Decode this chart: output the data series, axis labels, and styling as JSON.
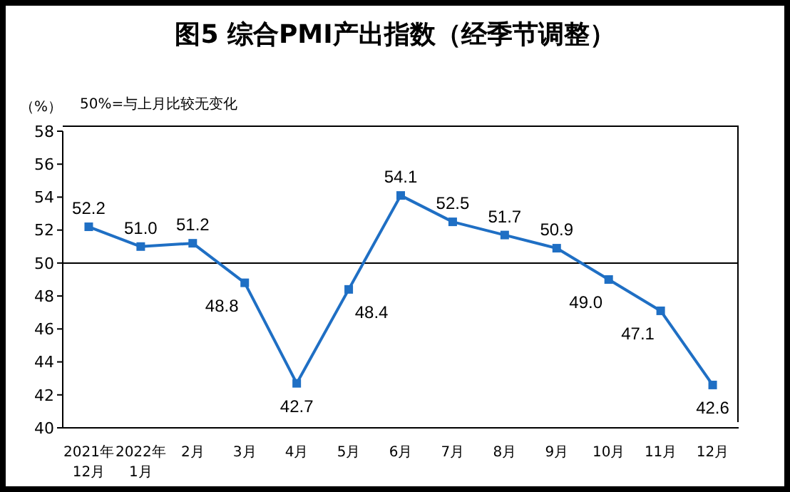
{
  "chart_data": {
    "type": "line",
    "title": "图5 综合PMI产出指数（经季节调整）",
    "ylabel": "（%）",
    "annotations": [
      "50%=与上月比较无变化"
    ],
    "categories": [
      "2021年\n12月",
      "2022年\n1月",
      "2月",
      "3月",
      "4月",
      "5月",
      "6月",
      "7月",
      "8月",
      "9月",
      "10月",
      "11月",
      "12月"
    ],
    "series": [
      {
        "color": "#1f6fc4",
        "values": [
          52.2,
          51.0,
          51.2,
          48.8,
          42.7,
          48.4,
          54.1,
          52.5,
          51.7,
          50.9,
          49.0,
          47.1,
          42.6
        ],
        "value_labels": [
          "52.2",
          "51.0",
          "51.2",
          "48.8",
          "42.7",
          "48.4",
          "54.1",
          "52.5",
          "51.7",
          "50.9",
          "49.0",
          "47.1",
          "42.6"
        ]
      }
    ],
    "ylim": [
      40,
      58
    ],
    "yticks": [
      40,
      42,
      44,
      46,
      48,
      50,
      52,
      54,
      56,
      58
    ],
    "ref_lines": [
      {
        "axis": "y",
        "value": 50,
        "color": "#000000"
      }
    ],
    "marker": "square",
    "grid": false
  }
}
